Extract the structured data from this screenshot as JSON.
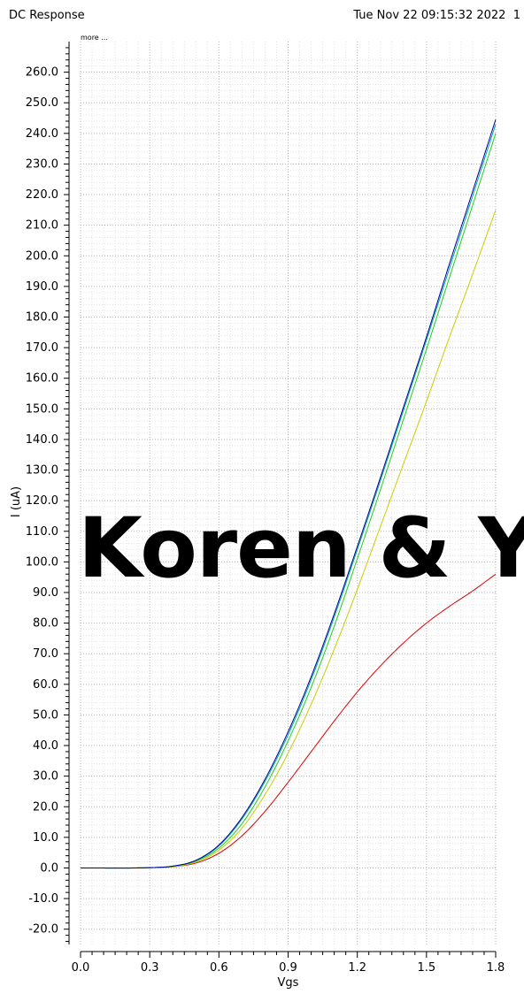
{
  "header": {
    "title": "DC Response",
    "timestamp": "Tue Nov 22 09:15:32 2022",
    "page_number": "1"
  },
  "more_label": "more ...",
  "watermark_text": "Koren & Yo",
  "chart_data": {
    "type": "line",
    "title": "",
    "xlabel": "Vgs",
    "ylabel": "I (uA)",
    "xlim": [
      0.0,
      1.8
    ],
    "ylim": [
      -25.0,
      270.0
    ],
    "x_ticks": [
      "0.0",
      "0.3",
      "0.6",
      "0.9",
      "1.2",
      "1.5",
      "1.8"
    ],
    "y_ticks": [
      "-20.0",
      "-10.0",
      "0.0",
      "10.0",
      "20.0",
      "30.0",
      "40.0",
      "50.0",
      "60.0",
      "70.0",
      "80.0",
      "90.0",
      "100.0",
      "110.0",
      "120.0",
      "130.0",
      "140.0",
      "150.0",
      "160.0",
      "170.0",
      "180.0",
      "190.0",
      "200.0",
      "210.0",
      "220.0",
      "230.0",
      "240.0",
      "250.0",
      "260.0"
    ],
    "grid": true,
    "x": [
      0.0,
      0.3,
      0.4,
      0.5,
      0.6,
      0.7,
      0.8,
      0.9,
      1.0,
      1.1,
      1.2,
      1.3,
      1.4,
      1.5,
      1.6,
      1.7,
      1.8
    ],
    "series": [
      {
        "color": "#000099",
        "values": [
          0.0,
          0.1,
          0.6,
          2.5,
          7.5,
          16.5,
          29.0,
          44.5,
          62.5,
          83.0,
          105.0,
          127.5,
          150.5,
          173.5,
          197.5,
          221.0,
          244.5
        ]
      },
      {
        "color": "#00aaaa",
        "values": [
          0.0,
          0.1,
          0.6,
          2.4,
          7.2,
          16.0,
          28.3,
          43.5,
          61.5,
          82.0,
          104.0,
          126.5,
          149.5,
          172.5,
          196.0,
          219.5,
          243.0
        ]
      },
      {
        "color": "#22cc22",
        "values": [
          0.0,
          0.1,
          0.5,
          2.2,
          6.5,
          14.5,
          26.5,
          41.5,
          59.0,
          79.0,
          101.0,
          123.5,
          146.5,
          169.5,
          193.0,
          216.5,
          240.0
        ]
      },
      {
        "color": "#cccc00",
        "values": [
          0.0,
          0.1,
          0.4,
          1.9,
          5.8,
          13.0,
          24.0,
          37.5,
          53.5,
          71.5,
          91.0,
          111.5,
          132.0,
          152.5,
          173.5,
          194.0,
          215.0
        ]
      },
      {
        "color": "#dd0000",
        "values": [
          0.0,
          0.1,
          0.4,
          1.6,
          4.8,
          10.5,
          18.5,
          28.0,
          38.0,
          48.0,
          57.5,
          66.0,
          73.5,
          80.0,
          85.5,
          90.5,
          96.0
        ]
      }
    ]
  }
}
